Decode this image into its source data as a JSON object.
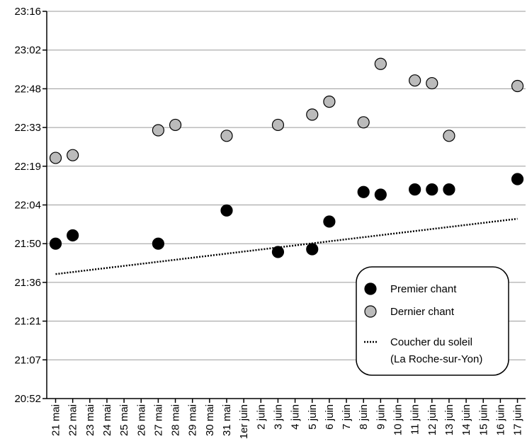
{
  "chart_data": {
    "type": "scatter",
    "title": "",
    "xlabel": "",
    "ylabel": "",
    "categories": [
      "21 mai",
      "22 mai",
      "23 mai",
      "24 mai",
      "25 mai",
      "26 mai",
      "27 mai",
      "28 mai",
      "29 mai",
      "30 mai",
      "31 mai",
      "1er juin",
      "2 juin",
      "3 juin",
      "4 juin",
      "5 juin",
      "6 juin",
      "7 juin",
      "8 juin",
      "9 juin",
      "10 juin",
      "11 juin",
      "12 juin",
      "13 juin",
      "14 juin",
      "15 juin",
      "16 juin",
      "17 juin"
    ],
    "y_ticks": [
      "20:52",
      "21:07",
      "21:21",
      "21:36",
      "21:50",
      "22:04",
      "22:19",
      "22:33",
      "22:48",
      "23:02",
      "23:16"
    ],
    "ylim": [
      "20:52",
      "23:16"
    ],
    "grid": true,
    "legend_position": "bottom-right",
    "series": [
      {
        "name": "Premier chant",
        "color": "#000000",
        "points": [
          {
            "x": "21 mai",
            "y": "21:50"
          },
          {
            "x": "22 mai",
            "y": "21:53"
          },
          {
            "x": "27 mai",
            "y": "21:50"
          },
          {
            "x": "31 mai",
            "y": "22:02"
          },
          {
            "x": "3 juin",
            "y": "21:47"
          },
          {
            "x": "5 juin",
            "y": "21:48"
          },
          {
            "x": "6 juin",
            "y": "21:58"
          },
          {
            "x": "8 juin",
            "y": "22:09"
          },
          {
            "x": "9 juin",
            "y": "22:08"
          },
          {
            "x": "11 juin",
            "y": "22:10"
          },
          {
            "x": "12 juin",
            "y": "22:10"
          },
          {
            "x": "13 juin",
            "y": "22:10"
          },
          {
            "x": "17 juin",
            "y": "22:14"
          }
        ]
      },
      {
        "name": "Dernier chant",
        "color": "#bbbbbb",
        "points": [
          {
            "x": "21 mai",
            "y": "22:22"
          },
          {
            "x": "22 mai",
            "y": "22:23"
          },
          {
            "x": "27 mai",
            "y": "22:32"
          },
          {
            "x": "28 mai",
            "y": "22:34"
          },
          {
            "x": "31 mai",
            "y": "22:30"
          },
          {
            "x": "3 juin",
            "y": "22:34"
          },
          {
            "x": "5 juin",
            "y": "22:38"
          },
          {
            "x": "6 juin",
            "y": "22:43"
          },
          {
            "x": "8 juin",
            "y": "22:35"
          },
          {
            "x": "9 juin",
            "y": "22:57"
          },
          {
            "x": "11 juin",
            "y": "22:51"
          },
          {
            "x": "12 juin",
            "y": "22:50"
          },
          {
            "x": "13 juin",
            "y": "22:30"
          },
          {
            "x": "17 juin",
            "y": "22:49"
          }
        ]
      },
      {
        "name": "Coucher du soleil",
        "name_line2": "(La Roche-sur-Yon)",
        "style": "dotted",
        "color": "#000000",
        "points": [
          {
            "x": "21 mai",
            "y": "21:39"
          },
          {
            "x": "17 juin",
            "y": "21:59"
          }
        ]
      }
    ]
  }
}
